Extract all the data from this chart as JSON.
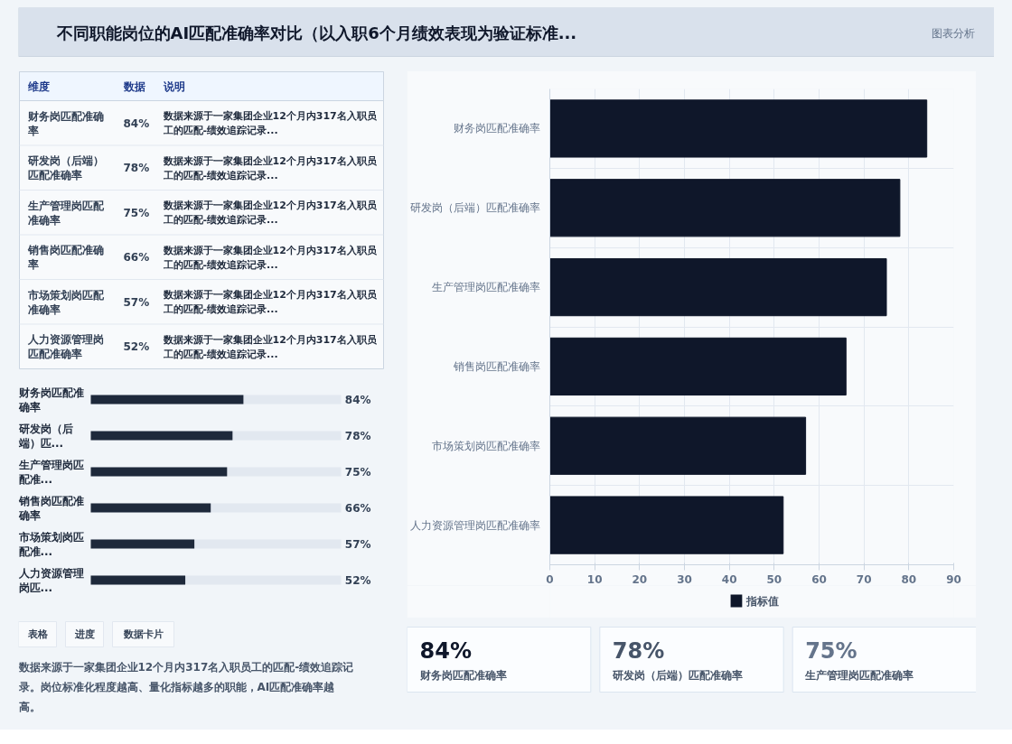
{
  "chart_data": [
    {
      "type": "other",
      "title": "不同职能岗位的AI匹配准确率对比（以入职6个月绩效表现为验证标准...",
      "annotations": [
        "图表分析"
      ]
    },
    {
      "type": "other",
      "categories": [
        "财务岗匹配准确率",
        "研发岗（后端）匹配准确率",
        "生产管理岗匹配准确率",
        "销售岗匹配准确率",
        "市场策划岗匹配准确率",
        "人力资源管理岗匹配准确率"
      ],
      "value_labels": [
        "84%",
        "78%",
        "75%",
        "66%",
        "57%",
        "52%"
      ],
      "annotations": [
        "维度",
        "数据",
        "说明",
        "数据来源于一家集团企业12个月内317名入职员工的匹配-绩效追踪记录...",
        "数据来源于一家集团企业12个月内317名入职员工的匹配-绩效追踪记录...",
        "数据来源于一家集团企业12个月内317名入职员工的匹配-绩效追踪记录...",
        "数据来源于一家集团企业12个月内317名入职员工的匹配-绩效追踪记录...",
        "数据来源于一家集团企业12个月内317名入职员工的匹配-绩效追踪记录...",
        "数据来源于一家集团企业12个月内317名入职员工的匹配-绩效追踪记录..."
      ]
    },
    {
      "type": "bar",
      "orientation": "horizontal",
      "categories": [
        "财务岗匹配准确率",
        "研发岗（后端）匹...",
        "生产管理岗匹配准...",
        "销售岗匹配准确率",
        "市场策划岗匹配准...",
        "人力资源管理岗匹..."
      ],
      "series": [
        {
          "color": "#1e293b",
          "values": [
            84,
            78,
            75,
            66,
            57,
            52
          ],
          "value_labels": [
            "84%",
            "78%",
            "75%",
            "66%",
            "57%",
            "52%"
          ]
        }
      ],
      "tick_labels": false,
      "annotations": [
        "表格",
        "进度",
        "数据卡片",
        "数据来源于一家集团企业12个月内317名入职员工的匹配-绩效追踪记录。岗位标准化程度越高、量化指标越多的职能，AI匹配准确率越高。"
      ]
    },
    {
      "type": "bar",
      "orientation": "horizontal",
      "categories": [
        "财务岗匹配准确率",
        "研发岗（后端）匹配准确率",
        "生产管理岗匹配准确率",
        "销售岗匹配准确率",
        "市场策划岗匹配准确率",
        "人力资源管理岗匹配准确率"
      ],
      "series": [
        {
          "name": "指标值",
          "color": "#0f172a",
          "values": [
            84,
            78,
            75,
            66,
            57,
            52
          ]
        }
      ],
      "xlim": [
        0,
        90
      ],
      "xticks": [
        0,
        10,
        20,
        30,
        40,
        50,
        60,
        70,
        80,
        90
      ],
      "grid": true,
      "legend": "bottom"
    },
    {
      "type": "other",
      "categories": [
        "财务岗匹配准确率",
        "研发岗（后端）匹配准确率",
        "生产管理岗匹配准确率"
      ],
      "value_labels": [
        "84%",
        "78%",
        "75%"
      ]
    }
  ]
}
